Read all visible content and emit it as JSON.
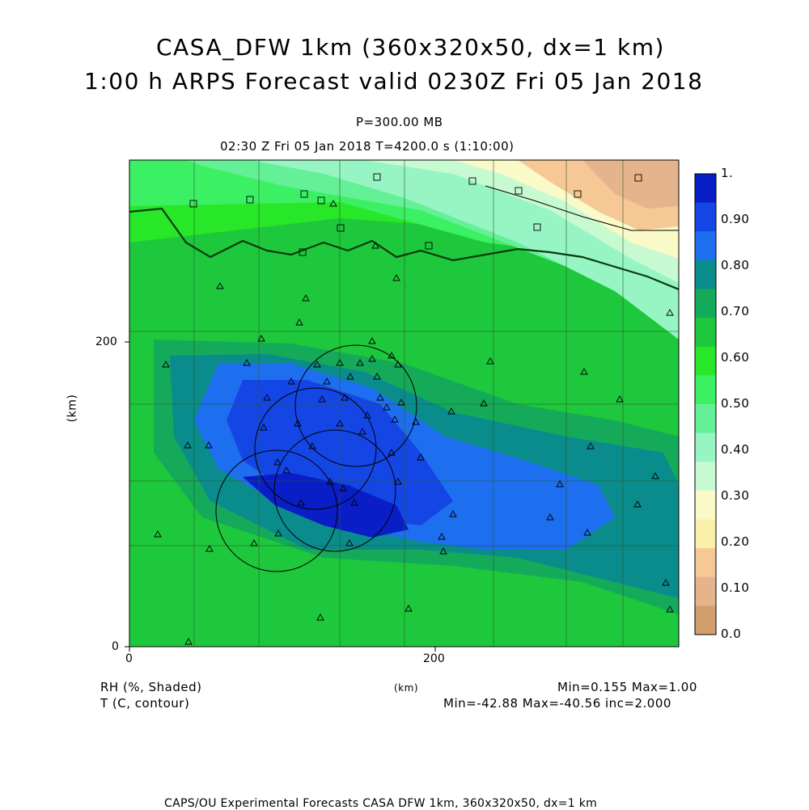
{
  "header": {
    "title_line1": "CASA_DFW 1km (360x320x50, dx=1 km)",
    "title_line2": "1:00 h ARPS Forecast valid 0230Z Fri 05 Jan 2018",
    "pressure_level": "P=300.00 MB",
    "valid_time": "02:30 Z Fri 05 Jan 2018    T=4200.0 s (1:10:00)"
  },
  "axes": {
    "x_ticks": [
      "0",
      "200"
    ],
    "y_ticks": [
      "0",
      "200"
    ],
    "x_unit": "(km)",
    "y_unit": "(km)"
  },
  "colorbar": {
    "labels": [
      "1.",
      "0.90",
      "0.80",
      "0.70",
      "0.60",
      "0.50",
      "0.40",
      "0.30",
      "0.20",
      "0.10",
      "0.0"
    ],
    "colors": [
      "#0a1ec8",
      "#1446e6",
      "#1e6ef0",
      "#0a8c8c",
      "#14aa5a",
      "#1ec83c",
      "#28e628",
      "#3cf064",
      "#64f096",
      "#96f5c3",
      "#c8fad2",
      "#fafac8",
      "#faf0aa",
      "#f5c896",
      "#e6b48c",
      "#d2a06e"
    ]
  },
  "legend": {
    "shaded_label": "RH (%, Shaded)",
    "contour_label": "T (C, contour)",
    "shaded_range": "Min=0.155  Max=1.00",
    "contour_range": "Min=-42.88  Max=-40.56  inc=2.000"
  },
  "footer": {
    "credit": "CAPS/OU Experimental Forecasts  CASA DFW 1km, 360x320x50, dx=1 km"
  }
}
